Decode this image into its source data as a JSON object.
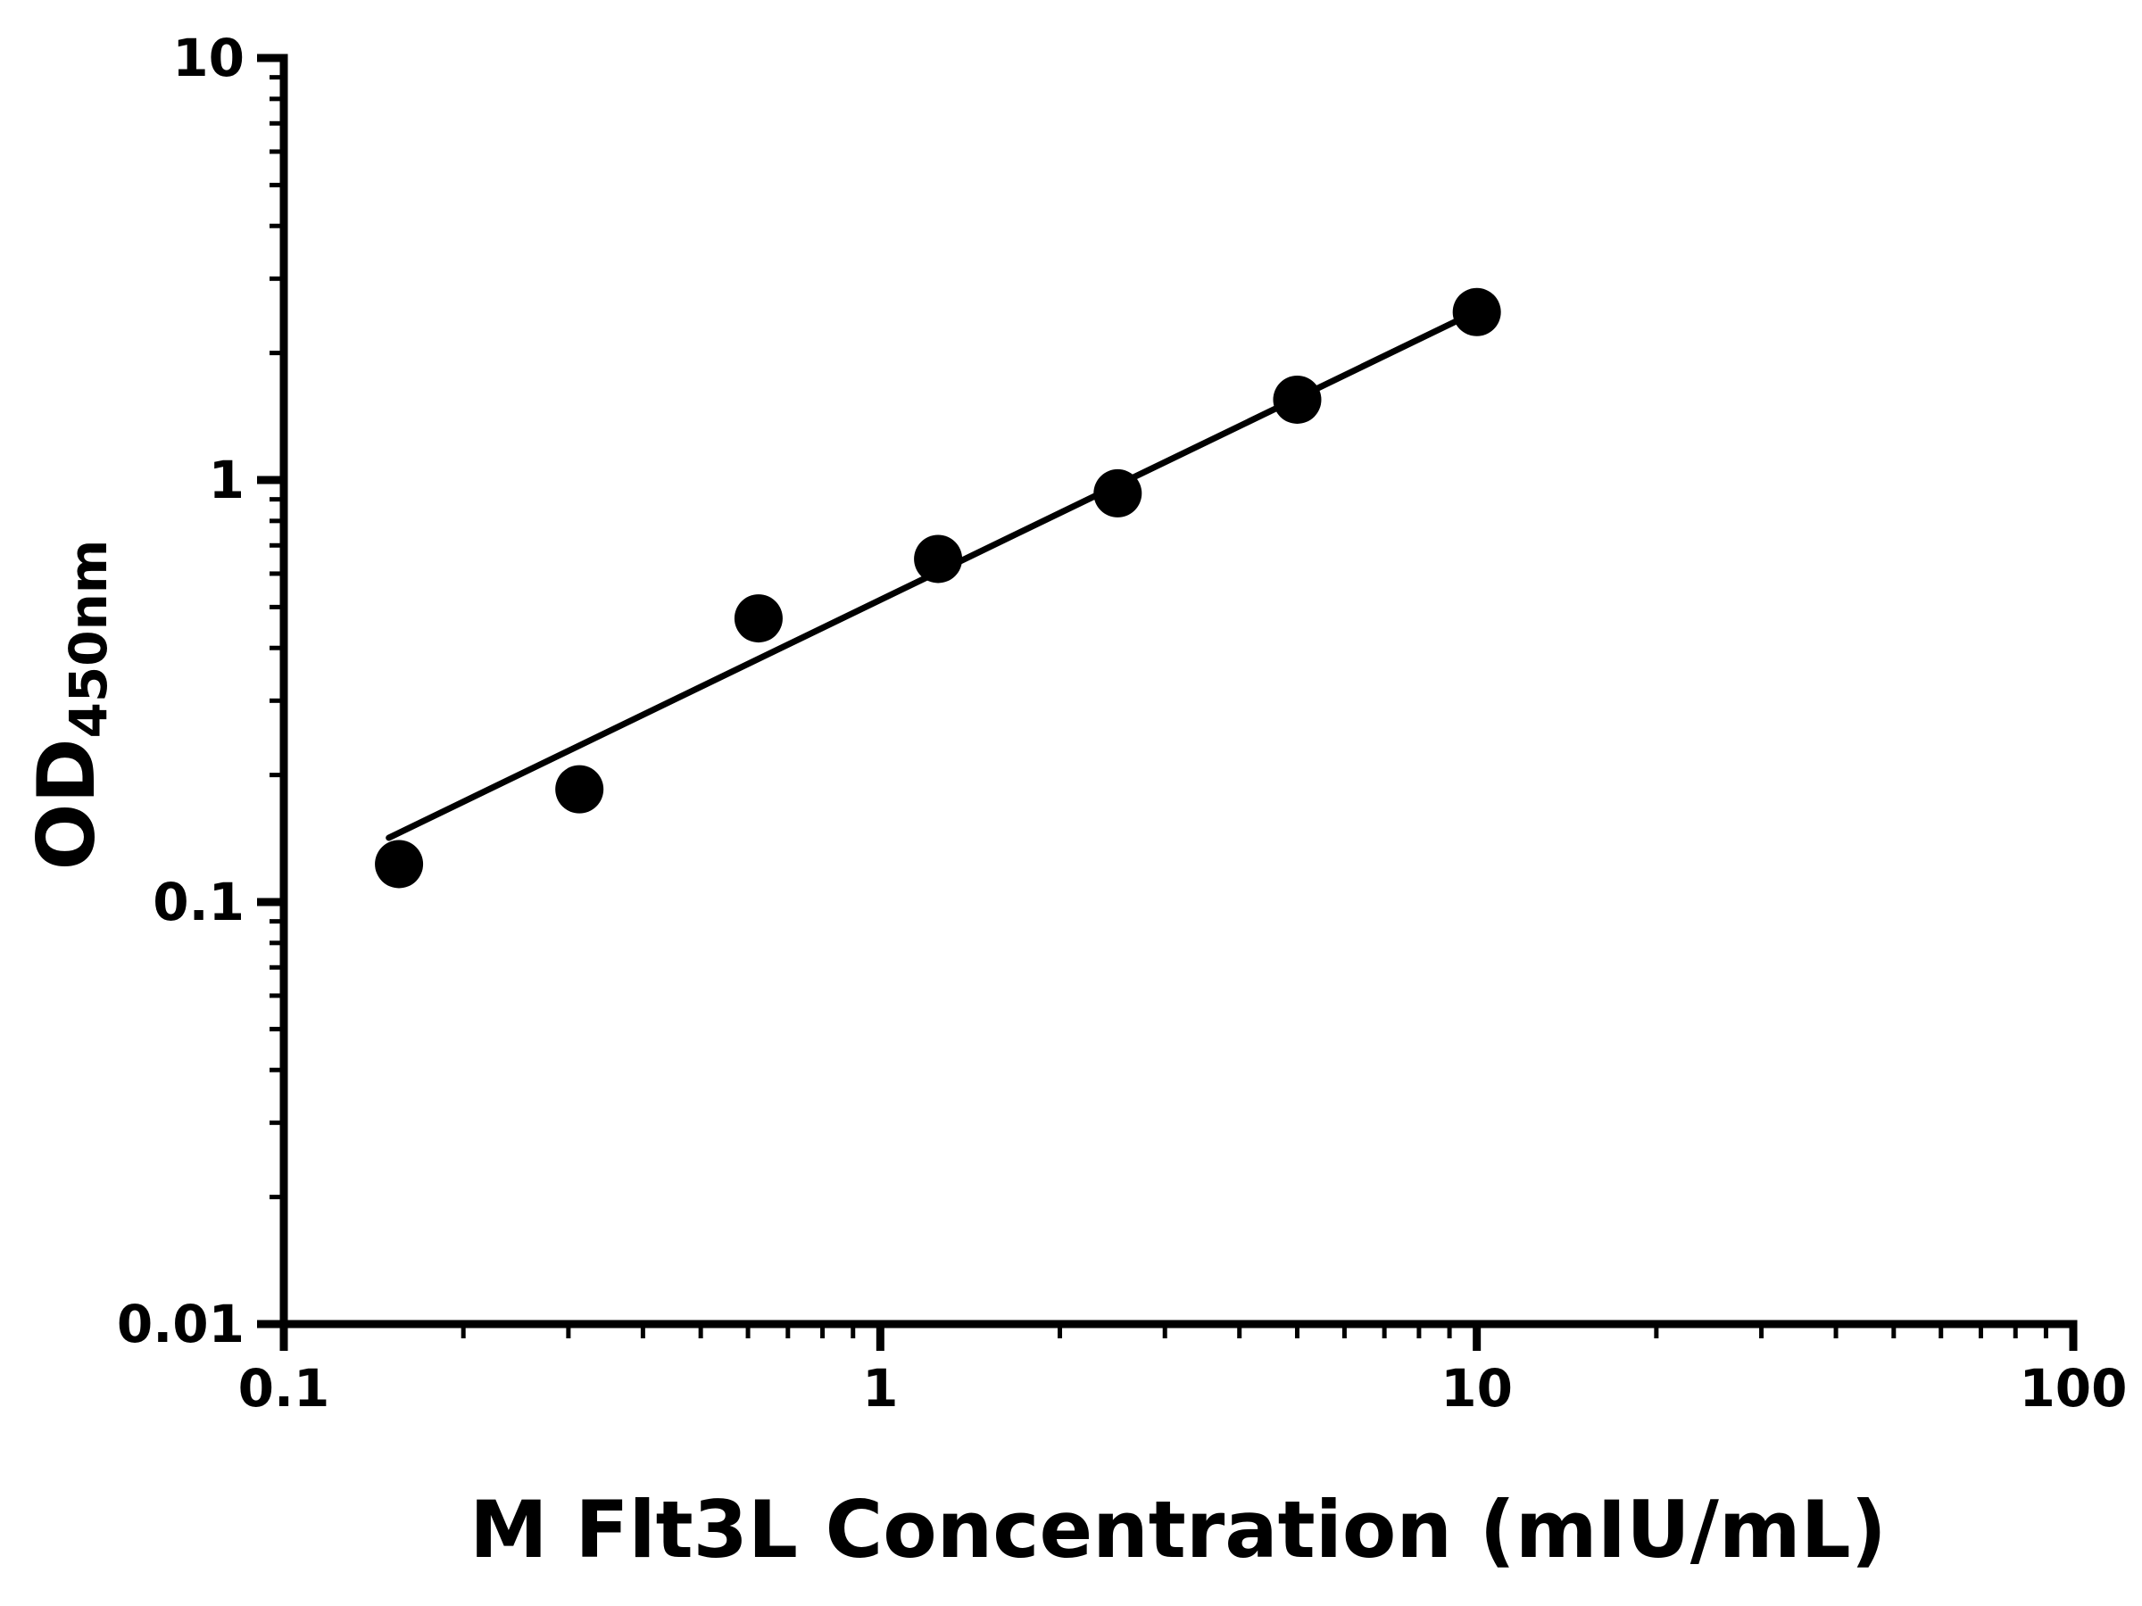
{
  "chart_data": {
    "type": "scatter",
    "title": "",
    "xlabel": "M Flt3L Concentration (mIU/mL)",
    "ylabel_main": "OD",
    "ylabel_sub": "450nm",
    "x_scale": "log",
    "y_scale": "log",
    "xlim": [
      0.1,
      100
    ],
    "ylim": [
      0.01,
      10
    ],
    "x_ticks": [
      {
        "value": 0.1,
        "label": "0.1"
      },
      {
        "value": 1,
        "label": "1"
      },
      {
        "value": 10,
        "label": "10"
      },
      {
        "value": 100,
        "label": "100"
      }
    ],
    "y_ticks": [
      {
        "value": 0.01,
        "label": "0.01"
      },
      {
        "value": 0.1,
        "label": "0.1"
      },
      {
        "value": 1,
        "label": "1"
      },
      {
        "value": 10,
        "label": "10"
      }
    ],
    "grid": false,
    "legend": "none",
    "points": [
      {
        "x": 0.156,
        "y": 0.123
      },
      {
        "x": 0.313,
        "y": 0.185
      },
      {
        "x": 0.625,
        "y": 0.47
      },
      {
        "x": 1.25,
        "y": 0.65
      },
      {
        "x": 2.5,
        "y": 0.93
      },
      {
        "x": 5,
        "y": 1.55
      },
      {
        "x": 10,
        "y": 2.5
      }
    ],
    "fit_line": {
      "x_start": 0.15,
      "y_start": 0.142,
      "x_end": 10.4,
      "y_end": 2.58
    },
    "marker_color": "#000000",
    "line_color": "#000000",
    "axis_color": "#000000",
    "background": "#ffffff"
  }
}
